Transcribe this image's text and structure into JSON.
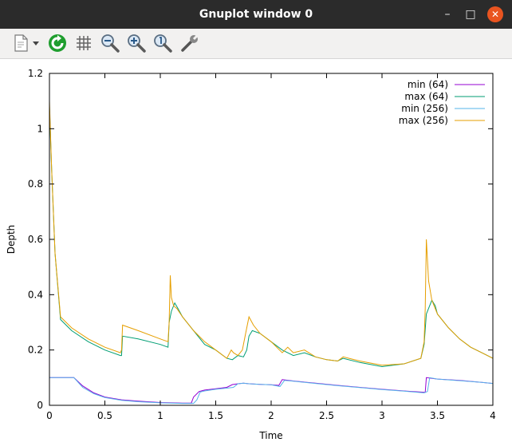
{
  "window": {
    "title": "Gnuplot window 0",
    "controls": {
      "minimize": "–",
      "maximize": "□",
      "close": "✕"
    }
  },
  "toolbar": {
    "items": [
      {
        "icon": "export-icon"
      },
      {
        "icon": "dropdown-arrow-icon"
      },
      {
        "icon": "replot-icon"
      },
      {
        "icon": "grid-icon"
      },
      {
        "icon": "zoom-out-icon"
      },
      {
        "icon": "zoom-in-icon"
      },
      {
        "icon": "zoom-reset-icon"
      },
      {
        "icon": "settings-wrench-icon"
      }
    ]
  },
  "chart_data": {
    "type": "line",
    "title": "",
    "xlabel": "Time",
    "ylabel": "Depth",
    "xlim": [
      0,
      4
    ],
    "ylim": [
      0,
      1.2
    ],
    "xticks": [
      "0",
      "0.5",
      "1",
      "1.5",
      "2",
      "2.5",
      "3",
      "3.5",
      "4"
    ],
    "yticks": [
      "0",
      "0.2",
      "0.4",
      "0.6",
      "0.8",
      "1",
      "1.2"
    ],
    "grid": false,
    "legend_position": "top-right",
    "series": [
      {
        "name": "min (64)",
        "color": "#9400d3",
        "x": [
          0,
          0.22,
          0.3,
          0.4,
          0.5,
          0.65,
          0.8,
          1.0,
          1.1,
          1.2,
          1.28,
          1.3,
          1.35,
          1.4,
          1.5,
          1.6,
          1.65,
          1.7,
          1.75,
          1.8,
          1.9,
          2.0,
          2.07,
          2.1,
          2.2,
          2.4,
          2.6,
          2.8,
          3.0,
          3.2,
          3.35,
          3.39,
          3.4,
          3.5,
          3.7,
          3.9,
          4.0
        ],
        "y": [
          0.1,
          0.1,
          0.07,
          0.045,
          0.03,
          0.02,
          0.015,
          0.01,
          0.009,
          0.008,
          0.008,
          0.03,
          0.05,
          0.055,
          0.06,
          0.065,
          0.075,
          0.078,
          0.08,
          0.078,
          0.076,
          0.074,
          0.072,
          0.093,
          0.088,
          0.08,
          0.072,
          0.065,
          0.058,
          0.052,
          0.048,
          0.047,
          0.1,
          0.095,
          0.09,
          0.083,
          0.079
        ]
      },
      {
        "name": "max (64)",
        "color": "#009e73",
        "x": [
          0,
          0.02,
          0.05,
          0.1,
          0.2,
          0.35,
          0.5,
          0.64,
          0.65,
          0.66,
          0.8,
          1.0,
          1.07,
          1.08,
          1.1,
          1.13,
          1.16,
          1.2,
          1.3,
          1.4,
          1.5,
          1.6,
          1.65,
          1.7,
          1.75,
          1.78,
          1.8,
          1.83,
          1.9,
          2.0,
          2.1,
          2.2,
          2.3,
          2.4,
          2.5,
          2.6,
          2.65,
          2.8,
          3.0,
          3.2,
          3.35,
          3.38,
          3.4,
          3.45,
          3.48,
          3.5,
          3.6,
          3.7,
          3.8,
          3.9,
          4.0
        ],
        "y": [
          1.08,
          0.85,
          0.55,
          0.31,
          0.27,
          0.23,
          0.2,
          0.18,
          0.18,
          0.25,
          0.24,
          0.22,
          0.21,
          0.3,
          0.34,
          0.37,
          0.35,
          0.32,
          0.27,
          0.22,
          0.2,
          0.17,
          0.165,
          0.18,
          0.175,
          0.2,
          0.25,
          0.27,
          0.26,
          0.23,
          0.2,
          0.18,
          0.19,
          0.175,
          0.165,
          0.16,
          0.17,
          0.155,
          0.14,
          0.15,
          0.17,
          0.22,
          0.33,
          0.38,
          0.36,
          0.33,
          0.28,
          0.24,
          0.21,
          0.19,
          0.17
        ]
      },
      {
        "name": "min (256)",
        "color": "#56b4e9",
        "x": [
          0,
          0.22,
          0.3,
          0.4,
          0.5,
          0.65,
          0.8,
          1.0,
          1.1,
          1.2,
          1.3,
          1.33,
          1.36,
          1.4,
          1.5,
          1.6,
          1.66,
          1.7,
          1.75,
          1.8,
          1.9,
          2.0,
          2.08,
          2.12,
          2.2,
          2.4,
          2.6,
          2.8,
          3.0,
          3.2,
          3.38,
          3.41,
          3.43,
          3.5,
          3.7,
          3.9,
          4.0
        ],
        "y": [
          0.1,
          0.1,
          0.065,
          0.042,
          0.028,
          0.018,
          0.013,
          0.009,
          0.008,
          0.007,
          0.007,
          0.02,
          0.048,
          0.052,
          0.058,
          0.062,
          0.065,
          0.078,
          0.08,
          0.078,
          0.076,
          0.074,
          0.068,
          0.09,
          0.087,
          0.079,
          0.071,
          0.064,
          0.057,
          0.051,
          0.045,
          0.05,
          0.1,
          0.095,
          0.089,
          0.083,
          0.079
        ]
      },
      {
        "name": "max (256)",
        "color": "#e69f00",
        "x": [
          0,
          0.02,
          0.05,
          0.1,
          0.2,
          0.35,
          0.5,
          0.64,
          0.65,
          0.66,
          0.8,
          1.0,
          1.07,
          1.08,
          1.09,
          1.1,
          1.12,
          1.15,
          1.2,
          1.3,
          1.4,
          1.5,
          1.6,
          1.64,
          1.66,
          1.7,
          1.74,
          1.77,
          1.8,
          1.84,
          1.9,
          2.0,
          2.1,
          2.15,
          2.2,
          2.3,
          2.4,
          2.5,
          2.6,
          2.65,
          2.8,
          3.0,
          3.2,
          3.35,
          3.38,
          3.39,
          3.4,
          3.42,
          3.45,
          3.5,
          3.6,
          3.7,
          3.8,
          3.9,
          4.0
        ],
        "y": [
          1.1,
          0.85,
          0.55,
          0.32,
          0.28,
          0.24,
          0.21,
          0.19,
          0.2,
          0.29,
          0.27,
          0.24,
          0.23,
          0.3,
          0.47,
          0.39,
          0.36,
          0.35,
          0.32,
          0.27,
          0.23,
          0.2,
          0.17,
          0.2,
          0.19,
          0.18,
          0.2,
          0.26,
          0.32,
          0.29,
          0.26,
          0.23,
          0.19,
          0.21,
          0.19,
          0.2,
          0.175,
          0.165,
          0.16,
          0.175,
          0.16,
          0.145,
          0.15,
          0.17,
          0.23,
          0.35,
          0.6,
          0.45,
          0.38,
          0.33,
          0.28,
          0.24,
          0.21,
          0.19,
          0.17
        ]
      }
    ]
  }
}
